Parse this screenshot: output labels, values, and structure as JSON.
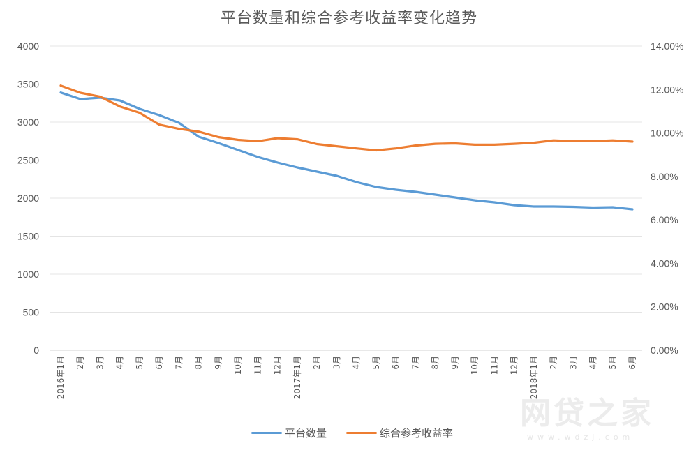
{
  "chart_data": {
    "type": "line",
    "title": "平台数量和综合参考收益率变化趋势",
    "xlabel": "",
    "ylabel": "",
    "y2label": "",
    "ylim": [
      0,
      4000
    ],
    "y2lim": [
      0,
      0.14
    ],
    "grid": true,
    "legend_position": "bottom",
    "left_ticks": [
      "0",
      "500",
      "1000",
      "1500",
      "2000",
      "2500",
      "3000",
      "3500",
      "4000"
    ],
    "right_ticks": [
      "0.00%",
      "2.00%",
      "4.00%",
      "6.00%",
      "8.00%",
      "10.00%",
      "12.00%",
      "14.00%"
    ],
    "categories": [
      "2016年1月",
      "2月",
      "3月",
      "4月",
      "5月",
      "6月",
      "7月",
      "8月",
      "9月",
      "10月",
      "11月",
      "12月",
      "2017年1月",
      "2月",
      "3月",
      "4月",
      "5月",
      "6月",
      "7月",
      "8月",
      "9月",
      "10月",
      "11月",
      "12月",
      "2018年1月",
      "2月",
      "3月",
      "4月",
      "5月",
      "6月"
    ],
    "series": [
      {
        "name": "平台数量",
        "axis": "left",
        "color": "#5b9bd5",
        "values": [
          3388,
          3303,
          3321,
          3284,
          3174,
          3092,
          2990,
          2807,
          2725,
          2633,
          2541,
          2468,
          2404,
          2349,
          2294,
          2211,
          2147,
          2110,
          2083,
          2046,
          2009,
          1972,
          1945,
          1908,
          1890,
          1890,
          1885,
          1876,
          1881,
          1853
        ]
      },
      {
        "name": "综合参考收益率",
        "axis": "right",
        "color": "#ed7d31",
        "values": [
          12.18,
          11.85,
          11.67,
          11.22,
          10.93,
          10.38,
          10.19,
          10.06,
          9.81,
          9.68,
          9.62,
          9.76,
          9.71,
          9.49,
          9.39,
          9.29,
          9.2,
          9.29,
          9.42,
          9.5,
          9.52,
          9.46,
          9.46,
          9.5,
          9.55,
          9.66,
          9.62,
          9.62,
          9.66,
          9.6
        ]
      }
    ]
  },
  "legend": {
    "items": [
      {
        "label": "平台数量",
        "color": "#5b9bd5"
      },
      {
        "label": "综合参考收益率",
        "color": "#ed7d31"
      }
    ]
  },
  "watermark": {
    "text": "网贷之家",
    "sub": "www.wdzj.com"
  }
}
